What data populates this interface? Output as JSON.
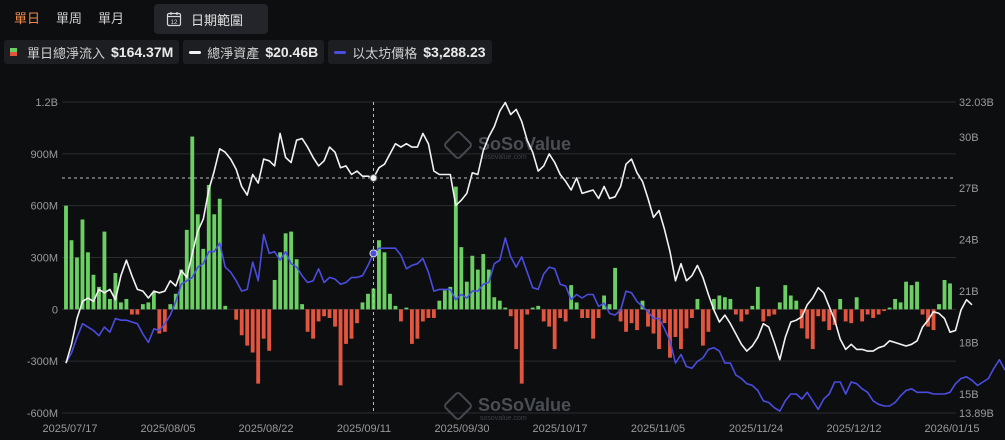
{
  "tabs": [
    "單日",
    "單周",
    "單月"
  ],
  "date_range_label": "日期範圍",
  "legend": [
    {
      "label": "單日總淨流入",
      "value": "$164.37M"
    },
    {
      "label": "總淨資產",
      "value": "$20.46B"
    },
    {
      "label": "以太坊價格",
      "value": "$3,288.23"
    }
  ],
  "watermark": "SoSoValue",
  "watermark_sub": "sosovalue.com",
  "colors": {
    "inflow": "#6ccf64",
    "outflow": "#e2553f",
    "assets": "#f2f2f2",
    "price": "#4b4ce0",
    "grid": "#2a2c30"
  },
  "chart_data": {
    "type": "bar+line",
    "x_ticks": [
      "2025/07/17",
      "2025/08/05",
      "2025/08/22",
      "2025/09/11",
      "2025/09/30",
      "2025/10/17",
      "2025/11/05",
      "2025/11/24",
      "2025/12/12",
      "2026/01/15"
    ],
    "left_axis": {
      "ticks": [
        "1.2B",
        "900M",
        "600M",
        "300M",
        "0",
        "-300M",
        "-600M"
      ],
      "ylim": [
        -600,
        1200
      ],
      "unit": "M"
    },
    "right_axis": {
      "ticks": [
        "32.03B",
        "30B",
        "27B",
        "24B",
        "21B",
        "18B",
        "15B",
        "13.89B"
      ],
      "ylim": [
        13.89,
        32.03
      ],
      "unit": "B"
    },
    "series": [
      {
        "name": "單日總淨流入",
        "kind": "bar",
        "values": [
          600,
          400,
          300,
          520,
          330,
          200,
          130,
          450,
          60,
          210,
          40,
          60,
          -30,
          -30,
          30,
          40,
          100,
          -140,
          -130,
          30,
          90,
          230,
          460,
          1000,
          550,
          350,
          720,
          550,
          640,
          20,
          0,
          -60,
          -150,
          -210,
          -250,
          -430,
          -170,
          -240,
          170,
          330,
          440,
          450,
          290,
          30,
          -130,
          -170,
          -70,
          -40,
          -50,
          -100,
          -440,
          -200,
          -170,
          -80,
          40,
          90,
          120,
          400,
          330,
          90,
          20,
          -70,
          10,
          -200,
          -170,
          -70,
          -50,
          -50,
          50,
          110,
          130,
          710,
          360,
          160,
          310,
          230,
          320,
          230,
          70,
          50,
          10,
          -40,
          -230,
          -430,
          -30,
          10,
          20,
          -70,
          -100,
          -230,
          -50,
          -70,
          140,
          40,
          -50,
          -50,
          -170,
          -50,
          80,
          30,
          240,
          -70,
          -130,
          -80,
          -120,
          50,
          -100,
          -140,
          -230,
          -80,
          -280,
          -160,
          -230,
          -110,
          -50,
          60,
          -210,
          -130,
          60,
          80,
          70,
          60,
          -30,
          -70,
          -30,
          20,
          130,
          -70,
          -40,
          -30,
          40,
          140,
          80,
          50,
          -110,
          -170,
          -230,
          -40,
          -70,
          -120,
          -90,
          60,
          -70,
          -80,
          70,
          -70,
          -30,
          -50,
          -30,
          -10,
          10,
          60,
          40,
          160,
          140,
          160,
          -30,
          -100,
          -120,
          30,
          170,
          150
        ]
      },
      {
        "name": "總淨資產",
        "kind": "line",
        "values": [
          16.8,
          17.9,
          19.4,
          20.4,
          20.6,
          20.4,
          21.1,
          20.9,
          21.1,
          20.5,
          21.9,
          22.8,
          21.9,
          21.1,
          21.0,
          20.6,
          21.0,
          20.9,
          21.0,
          21.6,
          21.3,
          22.2,
          21.8,
          23.2,
          24.5,
          25.2,
          26.9,
          28.0,
          29.3,
          29.1,
          28.7,
          28.1,
          27.1,
          26.6,
          27.8,
          27.3,
          28.7,
          28.6,
          28.3,
          30.2,
          28.8,
          28.5,
          29.8,
          29.9,
          29.4,
          28.8,
          28.3,
          28.6,
          29.4,
          29.1,
          28.2,
          28.3,
          27.8,
          28.0,
          27.7,
          27.7,
          27.6,
          28.2,
          28.4,
          29.0,
          29.6,
          29.4,
          29.6,
          29.4,
          29.4,
          30.2,
          29.6,
          28.0,
          27.8,
          27.8,
          27.8,
          26.0,
          26.3,
          26.7,
          27.9,
          27.8,
          29.2,
          30.0,
          30.6,
          31.5,
          32.0,
          31.3,
          31.6,
          30.9,
          29.8,
          29.1,
          28.0,
          28.3,
          29.0,
          28.5,
          27.8,
          27.4,
          26.9,
          27.6,
          26.7,
          26.8,
          26.9,
          26.4,
          27.1,
          26.4,
          26.5,
          27.1,
          28.4,
          28.7,
          27.9,
          27.4,
          26.4,
          25.3,
          25.7,
          24.6,
          23.3,
          21.6,
          22.6,
          21.6,
          21.9,
          22.5,
          21.8,
          20.8,
          19.9,
          19.2,
          19.6,
          19.1,
          18.5,
          17.9,
          17.5,
          17.8,
          18.3,
          19.1,
          18.9,
          18.0,
          17.0,
          18.3,
          19.2,
          19.3,
          19.5,
          20.2,
          20.6,
          21.2,
          20.9,
          20.1,
          19.3,
          18.2,
          17.6,
          17.9,
          17.6,
          17.6,
          17.5,
          17.5,
          17.7,
          17.8,
          18.1,
          18.0,
          17.9,
          17.8,
          17.9,
          18.1,
          18.9,
          19.3,
          19.8,
          19.7,
          19.4,
          18.6,
          18.7,
          19.9,
          20.5,
          20.2
        ]
      },
      {
        "name": "以太坊價格",
        "kind": "line",
        "values": [
          16.8,
          17.4,
          18.3,
          19.1,
          18.9,
          18.7,
          18.4,
          18.9,
          18.6,
          19.4,
          19.3,
          19.3,
          19.2,
          19.1,
          18.5,
          18.0,
          18.8,
          18.7,
          19.1,
          19.6,
          20.4,
          21.4,
          21.6,
          21.8,
          22.4,
          22.6,
          23.3,
          23.3,
          23.8,
          22.4,
          22.1,
          21.6,
          21.0,
          21.1,
          22.7,
          21.6,
          24.3,
          23.2,
          23.3,
          22.8,
          23.3,
          22.6,
          22.4,
          21.9,
          21.5,
          21.6,
          22.3,
          21.5,
          21.8,
          21.7,
          21.4,
          21.5,
          21.8,
          21.8,
          21.9,
          22.5,
          23.2,
          23.5,
          23.5,
          23.5,
          23.5,
          23.1,
          22.3,
          22.5,
          22.6,
          22.9,
          22.1,
          21.0,
          21.1,
          21.1,
          21.1,
          20.5,
          20.8,
          20.6,
          21.0,
          21.0,
          21.4,
          21.5,
          22.6,
          22.8,
          24.1,
          23.0,
          22.4,
          23.0,
          22.1,
          21.2,
          21.1,
          22.0,
          22.4,
          22.3,
          21.4,
          21.3,
          20.5,
          20.8,
          20.6,
          20.8,
          20.8,
          20.1,
          20.3,
          19.7,
          19.6,
          19.9,
          21.0,
          20.9,
          20.4,
          20.1,
          19.8,
          19.4,
          19.4,
          18.8,
          18.1,
          16.8,
          17.3,
          16.6,
          16.5,
          16.9,
          17.1,
          17.6,
          17.7,
          17.5,
          16.8,
          16.8,
          16.1,
          15.9,
          15.6,
          15.5,
          15.2,
          14.6,
          14.5,
          14.2,
          14.0,
          14.6,
          15.0,
          15.0,
          14.7,
          15.1,
          14.6,
          14.1,
          14.7,
          15.0,
          15.7,
          15.7,
          15.0,
          15.7,
          15.6,
          15.3,
          15.1,
          14.6,
          14.4,
          14.3,
          14.3,
          14.5,
          14.9,
          15.2,
          15.3,
          15.1,
          15.1,
          15.1,
          15.0,
          15.0,
          15.0,
          15.1,
          15.6,
          15.9,
          16.0,
          15.8,
          15.5,
          15.7,
          15.9,
          16.5,
          17.0,
          16.4
        ]
      }
    ],
    "hover_index": 56,
    "grid": true
  }
}
